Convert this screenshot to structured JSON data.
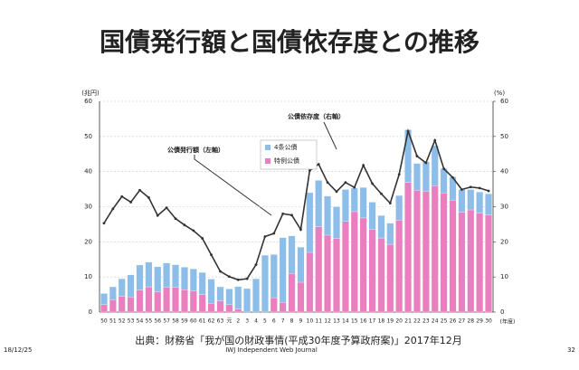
{
  "chart_data": {
    "type": "bar",
    "stacked": true,
    "title": "国債発行額と国債依存度との推移",
    "y_unit": "(兆円)",
    "y2_unit": "(%)",
    "x_unit": "(年度)",
    "annotation": "公債発行額（左軸）",
    "source": "出典：財務省「我が国の財政事情(平成30年度予算政府案)」2017年12月",
    "footer_date": "18/12/25",
    "footer_brand": "IWJ  Independent Web Journal",
    "page_number": "32",
    "categories": [
      "50",
      "51",
      "52",
      "53",
      "54",
      "55",
      "56",
      "57",
      "58",
      "59",
      "60",
      "61",
      "62",
      "63",
      "元",
      "2",
      "3",
      "4",
      "5",
      "6",
      "7",
      "8",
      "9",
      "10",
      "11",
      "12",
      "13",
      "14",
      "15",
      "16",
      "17",
      "18",
      "19",
      "20",
      "21",
      "22",
      "23",
      "24",
      "25",
      "26",
      "27",
      "28",
      "29",
      "30"
    ],
    "series": [
      {
        "name": "特例公債",
        "color": "#e97fbf",
        "values": [
          2.1,
          3.5,
          4.5,
          4.3,
          6.3,
          7.2,
          5.8,
          7.0,
          7.0,
          6.4,
          6.0,
          5.0,
          2.5,
          3.2,
          2.1,
          0.9,
          0,
          0,
          0,
          4.1,
          2.8,
          11.0,
          8.5,
          17.0,
          24.3,
          21.9,
          20.9,
          25.8,
          28.6,
          26.8,
          23.5,
          21.1,
          19.3,
          26.2,
          36.9,
          34.7,
          34.4,
          36.0,
          33.9,
          31.9,
          28.4,
          29.1,
          28.2,
          27.6
        ]
      },
      {
        "name": "4条公債",
        "color": "#8dbde9",
        "values": [
          3.2,
          3.7,
          5.0,
          6.3,
          7.1,
          7.0,
          7.1,
          7.0,
          6.5,
          6.4,
          6.3,
          6.3,
          6.9,
          4.0,
          4.5,
          6.4,
          6.7,
          9.5,
          16.2,
          12.3,
          18.4,
          10.7,
          10.0,
          17.0,
          13.2,
          11.1,
          9.1,
          9.1,
          6.7,
          8.7,
          7.8,
          6.4,
          6.0,
          7.0,
          15.0,
          7.6,
          8.4,
          11.4,
          7.0,
          6.6,
          6.5,
          5.8,
          6.0,
          6.1
        ]
      },
      {
        "name": "公債依存度（右軸）",
        "type": "line",
        "axis": "y2",
        "color": "#333333",
        "values": [
          25.3,
          29.4,
          32.9,
          31.3,
          34.7,
          32.6,
          27.5,
          29.7,
          26.6,
          24.8,
          23.2,
          21.0,
          16.3,
          11.6,
          10.1,
          9.2,
          9.5,
          13.5,
          21.5,
          22.4,
          28.0,
          27.6,
          23.5,
          40.3,
          42.1,
          36.9,
          34.3,
          36.9,
          35.5,
          41.8,
          36.6,
          33.7,
          31.0,
          39.2,
          51.5,
          44.4,
          42.5,
          48.9,
          40.8,
          38.3,
          34.9,
          35.6,
          35.3,
          34.5
        ]
      }
    ],
    "ylim": [
      0,
      60
    ],
    "yticks": [
      0,
      10,
      20,
      30,
      40,
      50,
      60
    ],
    "y2lim": [
      0,
      60
    ],
    "y2ticks": [
      0,
      10,
      20,
      30,
      40,
      50,
      60
    ],
    "grid": true
  }
}
